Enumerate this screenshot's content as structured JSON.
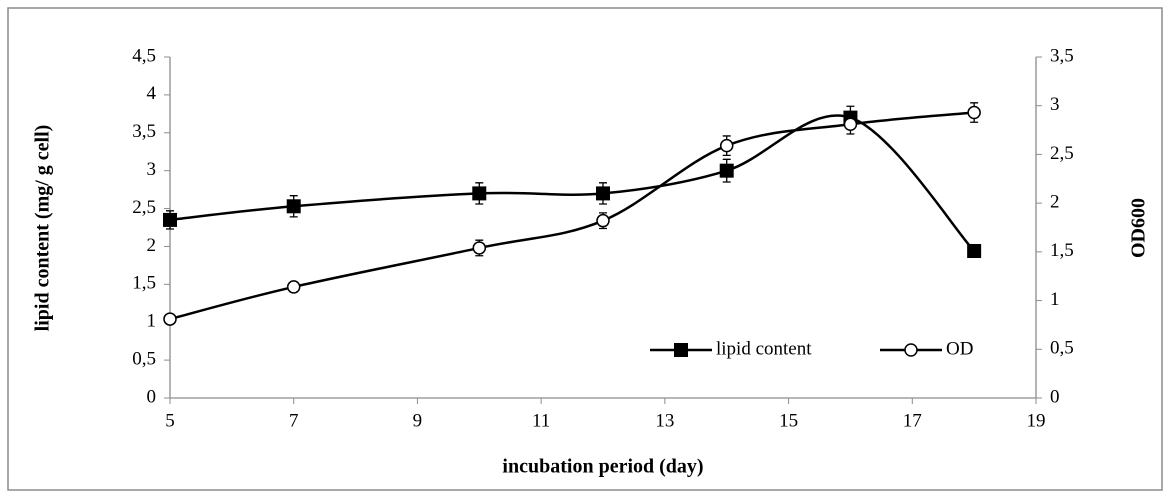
{
  "chart_data": {
    "type": "line",
    "xlabel": "incubation period (day)",
    "ylabel": "lipid content (mg/ g cell)",
    "y2label": "OD600",
    "xlim": [
      5,
      19
    ],
    "xticks": [
      5,
      7,
      9,
      11,
      13,
      15,
      17,
      19
    ],
    "ylim": [
      0,
      4.5
    ],
    "yticks": [
      0,
      {
        "value": 0.5,
        "label": "0,5"
      },
      1,
      {
        "value": 1.5,
        "label": "1,5"
      },
      2,
      {
        "value": 2.5,
        "label": "2,5"
      },
      3,
      {
        "value": 3.5,
        "label": "3,5"
      },
      4,
      {
        "value": 4.5,
        "label": "4,5"
      }
    ],
    "y2lim": [
      0,
      3.5
    ],
    "y2ticks": [
      0,
      {
        "value": 0.5,
        "label": "0,5"
      },
      1,
      {
        "value": 1.5,
        "label": "1,5"
      },
      2,
      {
        "value": 2.5,
        "label": "2,5"
      },
      3,
      {
        "value": 3.5,
        "label": "3,5"
      }
    ],
    "legend": "lower right",
    "series": [
      {
        "name": "lipid content",
        "color": "#000000",
        "marker": "filled-square",
        "x": [
          5,
          7,
          10,
          12,
          14,
          16,
          18
        ],
        "values": [
          2.35,
          2.53,
          2.7,
          2.7,
          3.0,
          3.7,
          1.94
        ],
        "errors": [
          0.12,
          0.14,
          0.14,
          0.14,
          0.15,
          0.15,
          0.05
        ]
      },
      {
        "name": "OD",
        "color": "#000000",
        "marker": "open-circle",
        "axis": "y2",
        "x": [
          5,
          7,
          10,
          12,
          14,
          16,
          18
        ],
        "values": [
          0.81,
          1.14,
          1.54,
          1.82,
          2.59,
          2.81,
          2.93
        ],
        "errors": [
          0.03,
          0.04,
          0.08,
          0.08,
          0.1,
          0.1,
          0.1
        ]
      }
    ]
  }
}
